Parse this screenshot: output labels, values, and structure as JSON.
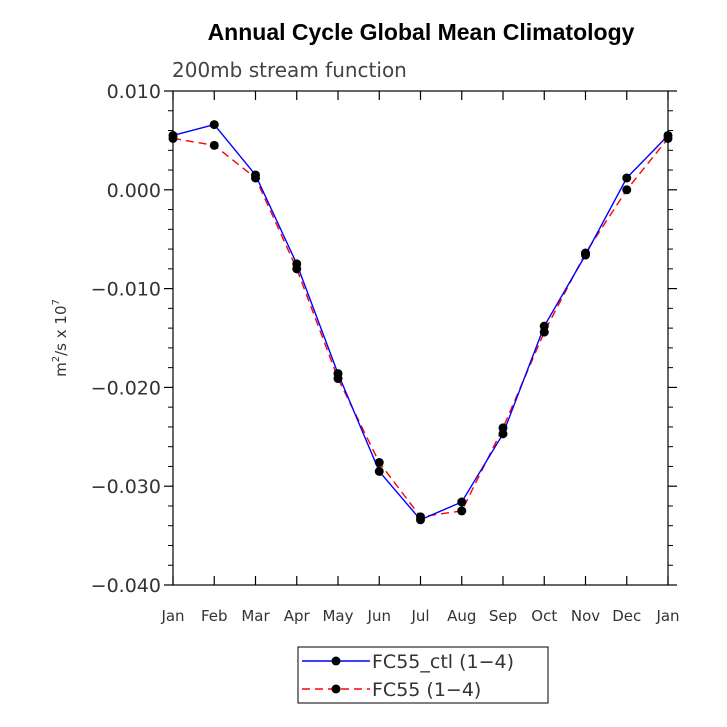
{
  "chart_data": {
    "type": "line",
    "title": "Annual Cycle Global Mean Climatology",
    "subtitle": "200mb stream function",
    "ylabel": {
      "base": "m",
      "sup1": "2",
      "mid": "/s x 10",
      "sup2": "7"
    },
    "xlabel": "",
    "categories": [
      "Jan",
      "Feb",
      "Mar",
      "Apr",
      "May",
      "Jun",
      "Jul",
      "Aug",
      "Sep",
      "Oct",
      "Nov",
      "Dec",
      "Jan"
    ],
    "ylim": [
      -0.04,
      0.01
    ],
    "yticks": [
      -0.04,
      -0.03,
      -0.02,
      -0.01,
      0.0,
      0.01
    ],
    "ytick_labels": [
      "−0.040",
      "−0.030",
      "−0.020",
      "−0.010",
      "0.000",
      "0.010"
    ],
    "series": [
      {
        "name": "FC55_ctl (1−4)",
        "color": "#0000ff",
        "dash": "solid",
        "values": [
          0.0055,
          0.0066,
          0.0015,
          -0.0075,
          -0.0186,
          -0.0285,
          -0.0334,
          -0.0316,
          -0.0247,
          -0.0138,
          -0.0066,
          0.0012,
          0.0055
        ]
      },
      {
        "name": "FC55 (1−4)",
        "color": "#ff0000",
        "dash": "dashed",
        "values": [
          0.0052,
          0.0045,
          0.0012,
          -0.008,
          -0.0191,
          -0.0276,
          -0.0331,
          -0.0325,
          -0.0241,
          -0.0144,
          -0.0064,
          0.0,
          0.0052
        ]
      }
    ],
    "marker_color": "#000000",
    "legend_position": "bottom-center"
  }
}
